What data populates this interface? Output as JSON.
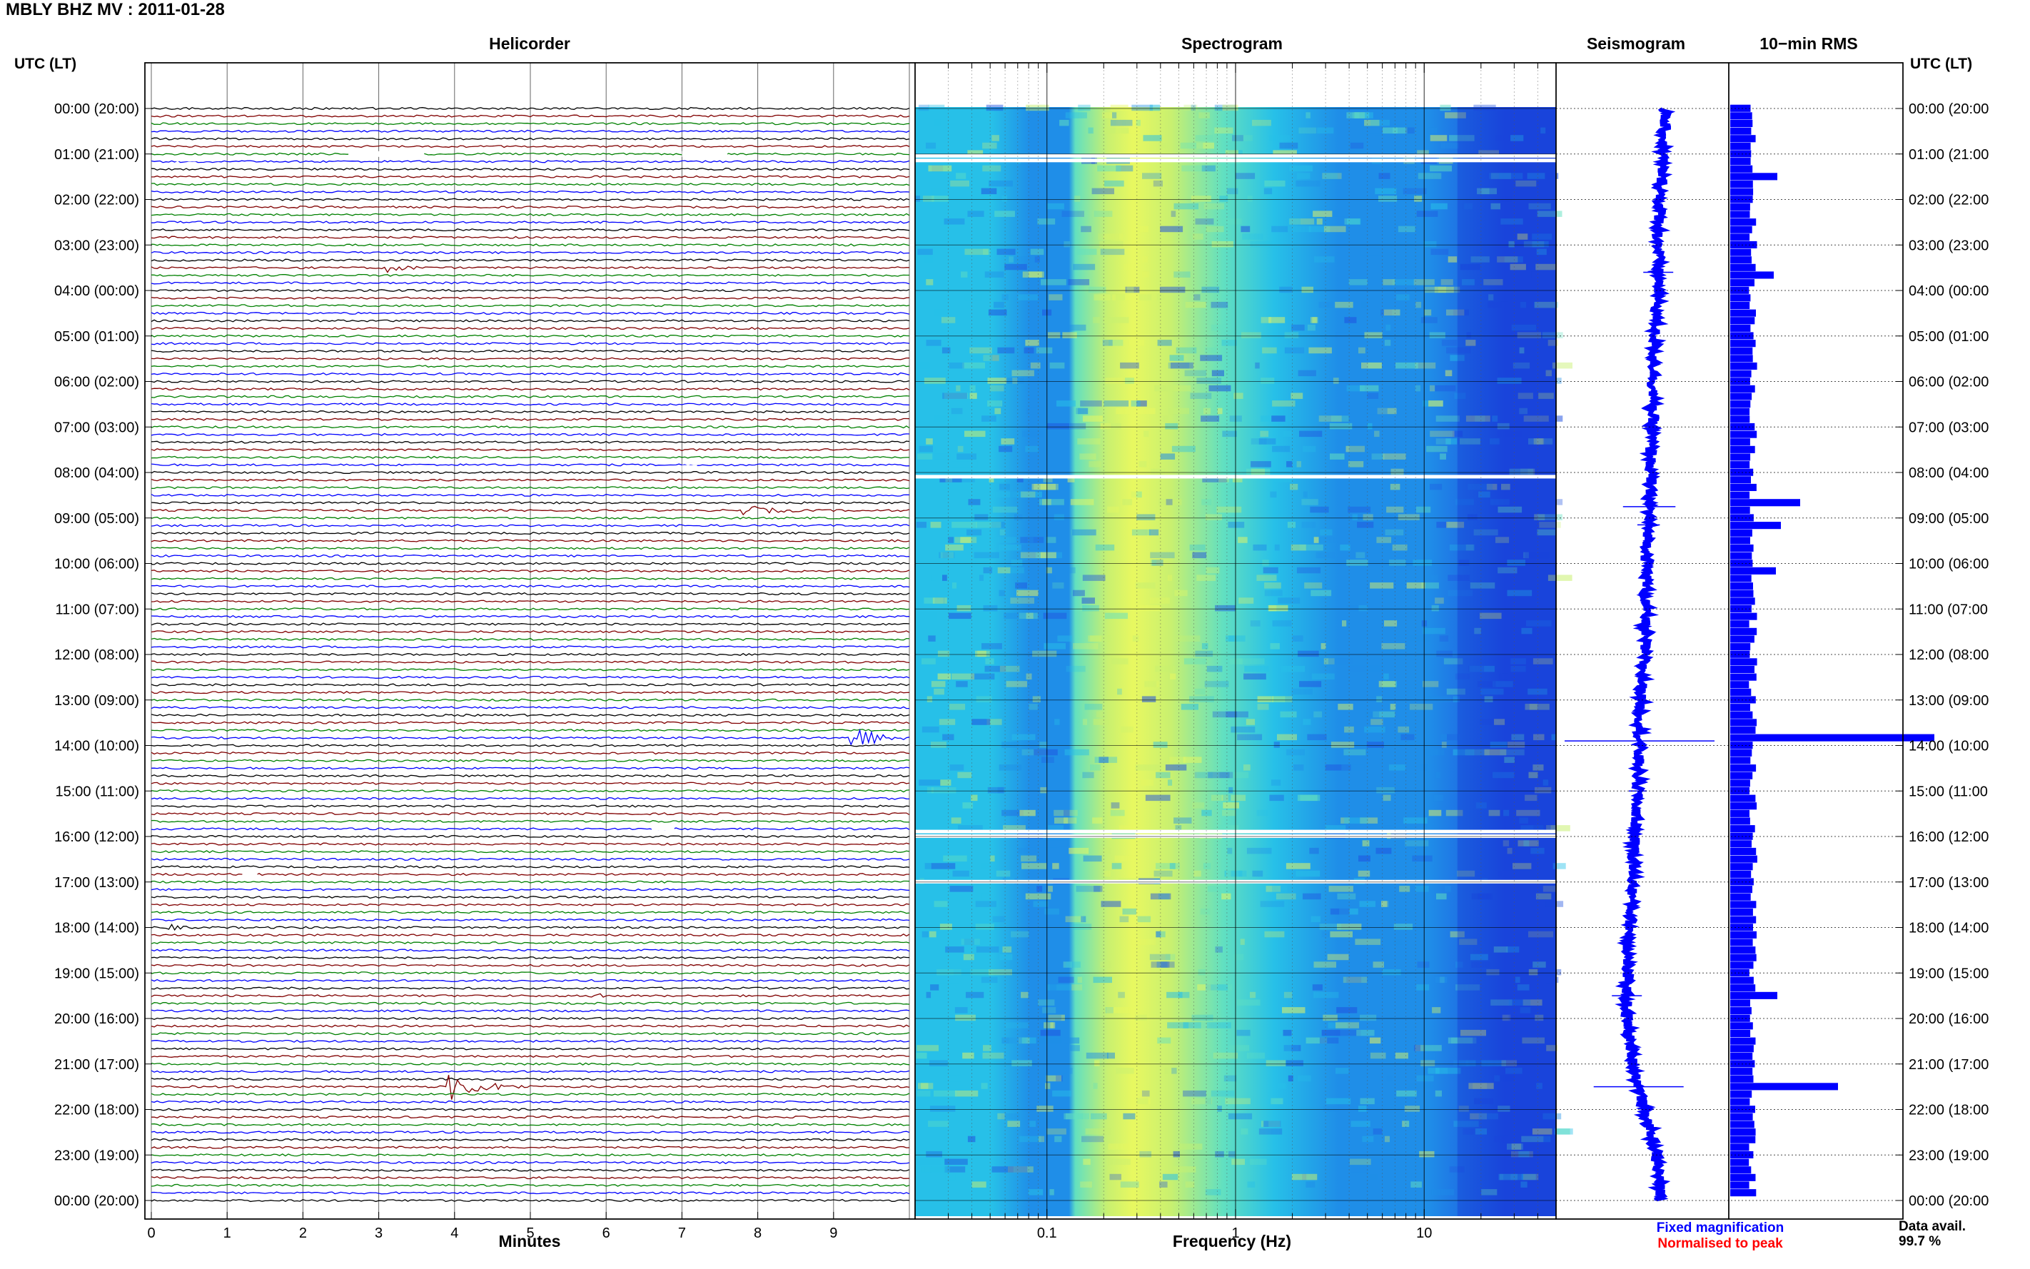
{
  "header": {
    "title": "MBLY BHZ MV : 2011-01-28",
    "utc_left": "UTC (LT)",
    "utc_right": "UTC (LT)"
  },
  "panels": {
    "helicorder_title": "Helicorder",
    "spectrogram_title": "Spectrogram",
    "seismogram_title": "Seismogram",
    "rms_title": "10−min RMS"
  },
  "legend": {
    "fixed": "Fixed magnification",
    "normalised": "Normalised to peak",
    "fixed_color": "#0000ff",
    "normalised_color": "#ff0000"
  },
  "data_avail": {
    "label": "Data avail.",
    "value": "99.7 %"
  },
  "chart_data": [
    {
      "type": "helicorder",
      "title": "Helicorder",
      "xlabel": "Minutes",
      "x_ticks": [
        0,
        1,
        2,
        3,
        4,
        5,
        6,
        7,
        8,
        9
      ],
      "xlim": [
        0,
        10
      ],
      "traces_per_hour": 6,
      "trace_colors": [
        "#000000",
        "#800000",
        "#008000",
        "#0000ff"
      ],
      "y_tick_labels": [
        "00:00 (20:00)",
        "01:00 (21:00)",
        "02:00 (22:00)",
        "03:00 (23:00)",
        "04:00 (00:00)",
        "05:00 (01:00)",
        "06:00 (02:00)",
        "07:00 (03:00)",
        "08:00 (04:00)",
        "09:00 (05:00)",
        "10:00 (06:00)",
        "11:00 (07:00)",
        "12:00 (08:00)",
        "13:00 (09:00)",
        "14:00 (10:00)",
        "15:00 (11:00)",
        "16:00 (12:00)",
        "17:00 (13:00)",
        "18:00 (14:00)",
        "19:00 (15:00)",
        "20:00 (16:00)",
        "21:00 (17:00)",
        "22:00 (18:00)",
        "23:00 (19:00)",
        "00:00 (20:00)"
      ],
      "events": [
        {
          "hour": 3.5,
          "minute": 3.1,
          "amplitude": 1.2,
          "duration": 0.5
        },
        {
          "hour": 8.6,
          "minute": 5.3,
          "amplitude": 2.2,
          "duration": 0.6
        },
        {
          "hour": 8.8,
          "minute": 7.8,
          "amplitude": 0.9,
          "duration": 0.9
        },
        {
          "hour": 13.8,
          "minute": 9.2,
          "amplitude": 3.0,
          "duration": 0.8
        },
        {
          "hour": 18.0,
          "minute": 0.2,
          "amplitude": 0.8,
          "duration": 0.3
        },
        {
          "hour": 19.5,
          "minute": 5.7,
          "amplitude": 1.3,
          "duration": 0.4
        },
        {
          "hour": 21.5,
          "minute": 3.9,
          "amplitude": 2.6,
          "duration": 1.1
        }
      ],
      "gaps": [
        {
          "hour": 1.0,
          "minute": 2.6,
          "duration": 1.0
        },
        {
          "hour": 1.0,
          "minute": 7.0,
          "duration": 0.6
        },
        {
          "hour": 1.1,
          "minute": 0.3,
          "duration": 0.6
        },
        {
          "hour": 7.9,
          "minute": 7.0,
          "duration": 0.2
        },
        {
          "hour": 15.8,
          "minute": 6.6,
          "duration": 0.3
        },
        {
          "hour": 16.8,
          "minute": 1.2,
          "duration": 0.2
        }
      ]
    },
    {
      "type": "heatmap",
      "title": "Spectrogram",
      "xlabel": "Frequency (Hz)",
      "x_scale": "log",
      "xlim": [
        0.02,
        50
      ],
      "x_tick_labels": [
        "0.1",
        "1",
        "10"
      ],
      "x_tick_values": [
        0.1,
        1,
        10
      ],
      "colormap": [
        "#1e4fe0",
        "#1f8ee8",
        "#27c0e8",
        "#62e0c0",
        "#c8f070",
        "#e8f860"
      ],
      "peak_frequency_hz": 0.25,
      "gaps_utc_hours": [
        1.05,
        1.15,
        8.1,
        15.9,
        16.0,
        17.0
      ]
    },
    {
      "type": "line",
      "title": "Seismogram",
      "y_hours": [
        0,
        1,
        2,
        3,
        4,
        5,
        6,
        7,
        8,
        9,
        10,
        11,
        12,
        13,
        14,
        15,
        16,
        17,
        18,
        19,
        20,
        21,
        22,
        23,
        24
      ],
      "offset": [
        0.1,
        0.09,
        0.07,
        0.06,
        0.06,
        0.04,
        0.03,
        0.02,
        0.01,
        0.0,
        -0.01,
        -0.02,
        -0.03,
        -0.05,
        -0.06,
        -0.07,
        -0.09,
        -0.1,
        -0.12,
        -0.14,
        -0.14,
        -0.1,
        -0.03,
        0.05,
        0.08
      ],
      "spikes": [
        {
          "hour": 3.6,
          "amplitude": 0.2
        },
        {
          "hour": 8.75,
          "amplitude": 0.35
        },
        {
          "hour": 9.15,
          "amplitude": 0.15
        },
        {
          "hour": 13.9,
          "amplitude": 1.0
        },
        {
          "hour": 15.0,
          "amplitude": 0.12
        },
        {
          "hour": 19.5,
          "amplitude": 0.2
        },
        {
          "hour": 21.5,
          "amplitude": 0.6
        }
      ]
    },
    {
      "type": "bar",
      "title": "10−min RMS",
      "orientation": "horizontal",
      "baseline": 0.2,
      "spikes": [
        {
          "hour": 1.5,
          "value": 0.6
        },
        {
          "hour": 3.6,
          "value": 0.55
        },
        {
          "hour": 8.7,
          "value": 0.92
        },
        {
          "hour": 9.1,
          "value": 0.65
        },
        {
          "hour": 10.2,
          "value": 0.58
        },
        {
          "hour": 13.85,
          "value": 2.8
        },
        {
          "hour": 19.5,
          "value": 0.6
        },
        {
          "hour": 21.5,
          "value": 1.45
        }
      ]
    }
  ]
}
